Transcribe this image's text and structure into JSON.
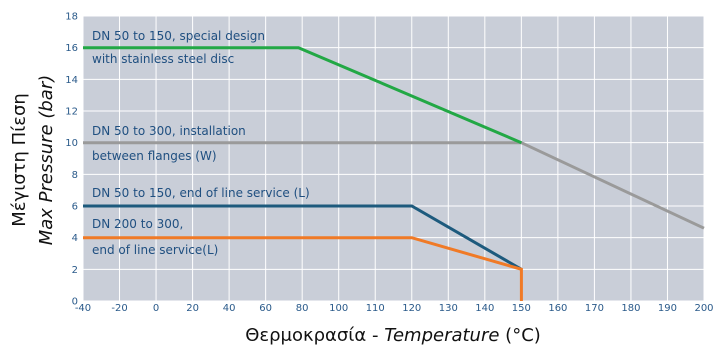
{
  "chart_data": {
    "type": "line",
    "xlabel": {
      "greek": "Θερμοκρασία - ",
      "english": "Temperature",
      "unit": " (°C)"
    },
    "ylabel": {
      "greek": "Μέγιστη Πίεση",
      "english": "Max Pressure (bar)"
    },
    "xlim": [
      -40,
      200
    ],
    "ylim": [
      0,
      18
    ],
    "xticks": [
      -40,
      -20,
      0,
      20,
      40,
      60,
      80,
      100,
      110,
      120,
      130,
      140,
      150,
      160,
      170,
      180,
      190,
      200
    ],
    "yticks": [
      0,
      2,
      4,
      6,
      8,
      10,
      12,
      14,
      16,
      18
    ],
    "grid": true,
    "plot_background": "#c9ced8",
    "series": [
      {
        "id": "green",
        "color": "#22a845",
        "label_lines": [
          "DN 50 to 150, special design",
          "with stainless steel disc"
        ],
        "points": [
          [
            -40,
            16
          ],
          [
            78,
            16
          ],
          [
            150,
            10
          ]
        ]
      },
      {
        "id": "gray",
        "color": "#9a9a9a",
        "label_lines": [
          "DN 50 to 300, installation",
          "between flanges (W)"
        ],
        "points": [
          [
            -40,
            10
          ],
          [
            150,
            10
          ],
          [
            200,
            4.6
          ]
        ]
      },
      {
        "id": "blue",
        "color": "#1d5a7d",
        "label_lines": [
          "DN 50 to 150, end of line service (L)"
        ],
        "points": [
          [
            -40,
            6
          ],
          [
            120,
            6
          ],
          [
            150,
            2
          ]
        ]
      },
      {
        "id": "orange",
        "color": "#f07a26",
        "label_lines": [
          "DN 200 to 300,",
          "end of line service(L)"
        ],
        "points": [
          [
            -40,
            4
          ],
          [
            120,
            4
          ],
          [
            150,
            2
          ],
          [
            150,
            0
          ]
        ]
      }
    ]
  }
}
